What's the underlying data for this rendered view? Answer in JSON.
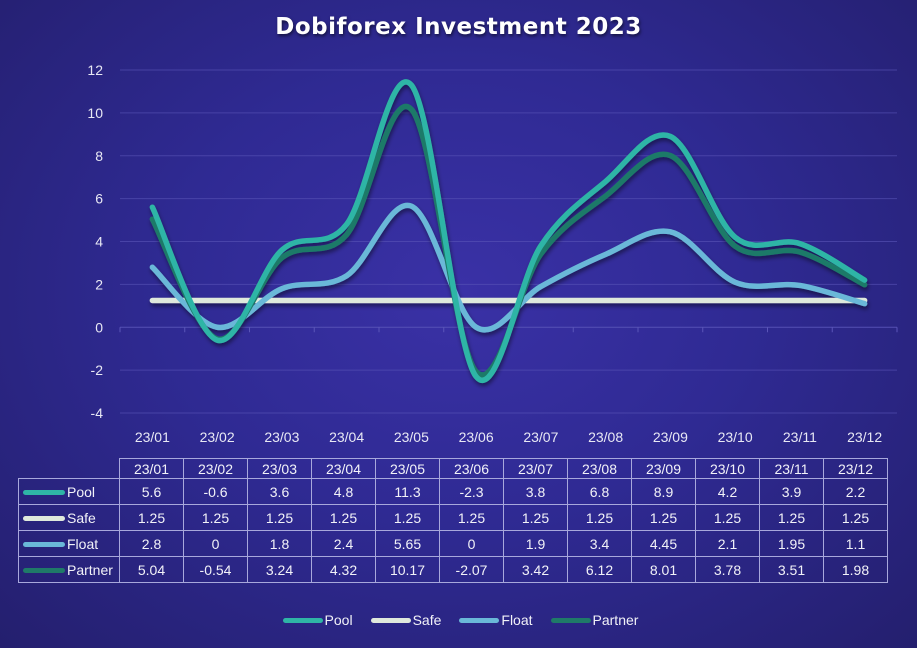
{
  "title": "Dobiforex Investment 2023",
  "colors": {
    "Pool": "#2fb5a6",
    "Safe": "#dfe9dc",
    "Float": "#6ab8d8",
    "Partner": "#1f7a68",
    "background": "#2f2a93",
    "gridline": "#5a55b8"
  },
  "y_ticks": [
    "12",
    "10",
    "8",
    "6",
    "4",
    "2",
    "0",
    "-2",
    "-4"
  ],
  "x_ticks": [
    "23/01",
    "23/02",
    "23/03",
    "23/04",
    "23/05",
    "23/06",
    "23/07",
    "23/08",
    "23/09",
    "23/10",
    "23/11",
    "23/12"
  ],
  "table": {
    "header": [
      "23/01",
      "23/02",
      "23/03",
      "23/04",
      "23/05",
      "23/06",
      "23/07",
      "23/08",
      "23/09",
      "23/10",
      "23/11",
      "23/12"
    ],
    "rows": [
      {
        "label": "Pool",
        "values": [
          "5.6",
          "-0.6",
          "3.6",
          "4.8",
          "11.3",
          "-2.3",
          "3.8",
          "6.8",
          "8.9",
          "4.2",
          "3.9",
          "2.2"
        ]
      },
      {
        "label": "Safe",
        "values": [
          "1.25",
          "1.25",
          "1.25",
          "1.25",
          "1.25",
          "1.25",
          "1.25",
          "1.25",
          "1.25",
          "1.25",
          "1.25",
          "1.25"
        ]
      },
      {
        "label": "Float",
        "values": [
          "2.8",
          "0",
          "1.8",
          "2.4",
          "5.65",
          "0",
          "1.9",
          "3.4",
          "4.45",
          "2.1",
          "1.95",
          "1.1"
        ]
      },
      {
        "label": "Partner",
        "values": [
          "5.04",
          "-0.54",
          "3.24",
          "4.32",
          "10.17",
          "-2.07",
          "3.42",
          "6.12",
          "8.01",
          "3.78",
          "3.51",
          "1.98"
        ]
      }
    ]
  },
  "legend": [
    {
      "label": "Pool"
    },
    {
      "label": "Safe"
    },
    {
      "label": "Float"
    },
    {
      "label": "Partner"
    }
  ],
  "chart_data": {
    "type": "line",
    "title": "Dobiforex Investment 2023",
    "xlabel": "",
    "ylabel": "",
    "categories": [
      "23/01",
      "23/02",
      "23/03",
      "23/04",
      "23/05",
      "23/06",
      "23/07",
      "23/08",
      "23/09",
      "23/10",
      "23/11",
      "23/12"
    ],
    "series": [
      {
        "name": "Pool",
        "values": [
          5.6,
          -0.6,
          3.6,
          4.8,
          11.3,
          -2.3,
          3.8,
          6.8,
          8.9,
          4.2,
          3.9,
          2.2
        ]
      },
      {
        "name": "Safe",
        "values": [
          1.25,
          1.25,
          1.25,
          1.25,
          1.25,
          1.25,
          1.25,
          1.25,
          1.25,
          1.25,
          1.25,
          1.25
        ]
      },
      {
        "name": "Float",
        "values": [
          2.8,
          0,
          1.8,
          2.4,
          5.65,
          0,
          1.9,
          3.4,
          4.45,
          2.1,
          1.95,
          1.1
        ]
      },
      {
        "name": "Partner",
        "values": [
          5.04,
          -0.54,
          3.24,
          4.32,
          10.17,
          -2.07,
          3.42,
          6.12,
          8.01,
          3.78,
          3.51,
          1.98
        ]
      }
    ],
    "ylim": [
      -4,
      12
    ],
    "y_tick_step": 2,
    "grid": true,
    "smooth": true,
    "legend_position": "bottom",
    "data_table": true
  }
}
